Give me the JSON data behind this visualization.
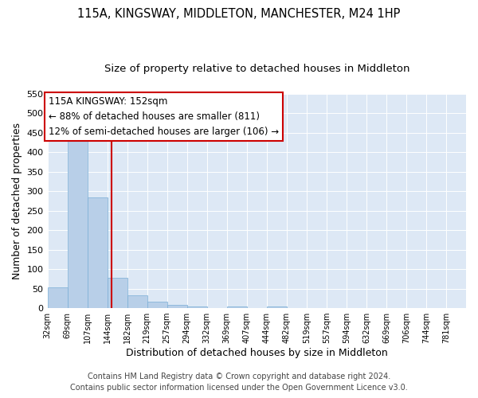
{
  "title": "115A, KINGSWAY, MIDDLETON, MANCHESTER, M24 1HP",
  "subtitle": "Size of property relative to detached houses in Middleton",
  "xlabel": "Distribution of detached houses by size in Middleton",
  "ylabel": "Number of detached properties",
  "bin_labels": [
    "32sqm",
    "69sqm",
    "107sqm",
    "144sqm",
    "182sqm",
    "219sqm",
    "257sqm",
    "294sqm",
    "332sqm",
    "369sqm",
    "407sqm",
    "444sqm",
    "482sqm",
    "519sqm",
    "557sqm",
    "594sqm",
    "632sqm",
    "669sqm",
    "706sqm",
    "744sqm",
    "781sqm"
  ],
  "bar_heights": [
    53,
    450,
    285,
    78,
    32,
    17,
    9,
    5,
    0,
    5,
    0,
    5,
    0,
    0,
    0,
    0,
    0,
    0,
    0,
    0,
    0
  ],
  "bar_color": "#b8cfe8",
  "bar_edgecolor": "#7aaed6",
  "bg_color": "#dde8f5",
  "grid_color": "#ffffff",
  "vline_index": 3.22,
  "vline_color": "#cc0000",
  "annotation_title": "115A KINGSWAY: 152sqm",
  "annotation_line1": "← 88% of detached houses are smaller (811)",
  "annotation_line2": "12% of semi-detached houses are larger (106) →",
  "annotation_box_color": "#cc0000",
  "ylim": [
    0,
    550
  ],
  "yticks": [
    0,
    50,
    100,
    150,
    200,
    250,
    300,
    350,
    400,
    450,
    500,
    550
  ],
  "footer1": "Contains HM Land Registry data © Crown copyright and database right 2024.",
  "footer2": "Contains public sector information licensed under the Open Government Licence v3.0.",
  "title_fontsize": 10.5,
  "subtitle_fontsize": 9.5,
  "annotation_fontsize": 8.5,
  "footer_fontsize": 7
}
